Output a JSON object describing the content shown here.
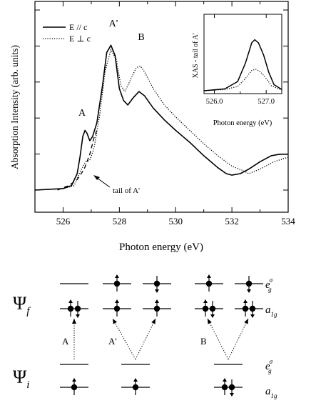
{
  "chart_data": [
    {
      "type": "line",
      "xlabel": "Photon energy (eV)",
      "ylabel": "Absorption Intensity (arb. units)",
      "xlim": [
        525,
        534
      ],
      "ylim": [
        0,
        1.08
      ],
      "x_ticks": [
        "526",
        "528",
        "530",
        "532",
        "534"
      ],
      "y_tick_count": 6,
      "grid": false,
      "legend_position": "top-left",
      "series": [
        {
          "name": "E // c",
          "style": "solid",
          "color": "#000000",
          "points": [
            [
              525.0,
              0.0
            ],
            [
              526.0,
              0.01
            ],
            [
              526.3,
              0.03
            ],
            [
              526.5,
              0.11
            ],
            [
              526.6,
              0.22
            ],
            [
              526.7,
              0.36
            ],
            [
              526.78,
              0.4
            ],
            [
              526.85,
              0.38
            ],
            [
              526.95,
              0.33
            ],
            [
              527.05,
              0.36
            ],
            [
              527.2,
              0.45
            ],
            [
              527.4,
              0.7
            ],
            [
              527.55,
              0.92
            ],
            [
              527.7,
              0.97
            ],
            [
              527.85,
              0.9
            ],
            [
              528.0,
              0.68
            ],
            [
              528.15,
              0.6
            ],
            [
              528.3,
              0.57
            ],
            [
              528.5,
              0.62
            ],
            [
              528.7,
              0.66
            ],
            [
              528.9,
              0.63
            ],
            [
              529.2,
              0.55
            ],
            [
              529.6,
              0.47
            ],
            [
              530.0,
              0.4
            ],
            [
              530.5,
              0.32
            ],
            [
              531.0,
              0.23
            ],
            [
              531.5,
              0.15
            ],
            [
              531.8,
              0.11
            ],
            [
              532.0,
              0.1
            ],
            [
              532.3,
              0.11
            ],
            [
              532.6,
              0.14
            ],
            [
              533.0,
              0.19
            ],
            [
              533.4,
              0.23
            ],
            [
              533.7,
              0.24
            ],
            [
              534.0,
              0.24
            ]
          ]
        },
        {
          "name": "E ⊥ c",
          "style": "dotted",
          "color": "#000000",
          "points": [
            [
              525.0,
              0.0
            ],
            [
              526.0,
              0.01
            ],
            [
              526.4,
              0.03
            ],
            [
              526.6,
              0.12
            ],
            [
              526.8,
              0.19
            ],
            [
              526.95,
              0.2
            ],
            [
              527.1,
              0.28
            ],
            [
              527.3,
              0.5
            ],
            [
              527.5,
              0.8
            ],
            [
              527.7,
              0.94
            ],
            [
              527.9,
              0.87
            ],
            [
              528.05,
              0.7
            ],
            [
              528.2,
              0.66
            ],
            [
              528.4,
              0.74
            ],
            [
              528.6,
              0.82
            ],
            [
              528.75,
              0.83
            ],
            [
              528.9,
              0.79
            ],
            [
              529.2,
              0.68
            ],
            [
              529.6,
              0.57
            ],
            [
              530.0,
              0.49
            ],
            [
              530.5,
              0.4
            ],
            [
              531.0,
              0.31
            ],
            [
              531.5,
              0.23
            ],
            [
              532.0,
              0.16
            ],
            [
              532.4,
              0.13
            ],
            [
              532.6,
              0.11
            ],
            [
              533.0,
              0.14
            ],
            [
              533.5,
              0.19
            ],
            [
              534.0,
              0.22
            ]
          ]
        },
        {
          "style": "dashed",
          "color": "#000000",
          "points": [
            [
              525.8,
              0.0
            ],
            [
              526.2,
              0.03
            ],
            [
              526.5,
              0.07
            ],
            [
              526.75,
              0.14
            ],
            [
              526.95,
              0.24
            ],
            [
              527.1,
              0.35
            ],
            [
              527.2,
              0.4
            ]
          ]
        }
      ],
      "annotations": [
        {
          "text": "A",
          "x": 526.75,
          "y": 0.43
        },
        {
          "text": "A'",
          "x": 527.7,
          "y": 1.02
        },
        {
          "text": "B",
          "x": 528.85,
          "y": 0.9
        },
        {
          "text": "tail of A'",
          "x": 527.3,
          "y": -0.03
        }
      ]
    },
    {
      "type": "line",
      "xlabel": "Photon energy (eV)",
      "ylabel": "XAS - tail of A'",
      "xlim": [
        525.8,
        527.3
      ],
      "ylim": [
        0,
        1.0
      ],
      "x_ticks": [
        "526.0",
        "527.0"
      ],
      "series": [
        {
          "name": "E // c",
          "style": "solid",
          "color": "#000000",
          "points": [
            [
              525.8,
              0.0
            ],
            [
              526.2,
              0.03
            ],
            [
              526.45,
              0.15
            ],
            [
              526.6,
              0.45
            ],
            [
              526.72,
              0.78
            ],
            [
              526.78,
              0.83
            ],
            [
              526.85,
              0.78
            ],
            [
              526.95,
              0.58
            ],
            [
              527.05,
              0.3
            ],
            [
              527.15,
              0.1
            ],
            [
              527.3,
              0.02
            ]
          ]
        },
        {
          "name": "E ⊥ c",
          "style": "dotted",
          "color": "#000000",
          "points": [
            [
              525.8,
              0.0
            ],
            [
              526.2,
              0.02
            ],
            [
              526.45,
              0.07
            ],
            [
              526.6,
              0.2
            ],
            [
              526.72,
              0.33
            ],
            [
              526.8,
              0.35
            ],
            [
              526.9,
              0.3
            ],
            [
              527.0,
              0.2
            ],
            [
              527.1,
              0.08
            ],
            [
              527.3,
              0.01
            ]
          ]
        }
      ]
    }
  ],
  "diagram": {
    "final_state_label": "Ψ",
    "final_state_sub": "f",
    "initial_state_label": "Ψ",
    "initial_state_sub": "i",
    "eg_sigma_label": "e",
    "eg_sigma_sub": "g",
    "eg_sigma_sup": "σ",
    "a1g_label": "a",
    "a1g_sub": "1g",
    "transitions": [
      "A",
      "A'",
      "B"
    ]
  }
}
